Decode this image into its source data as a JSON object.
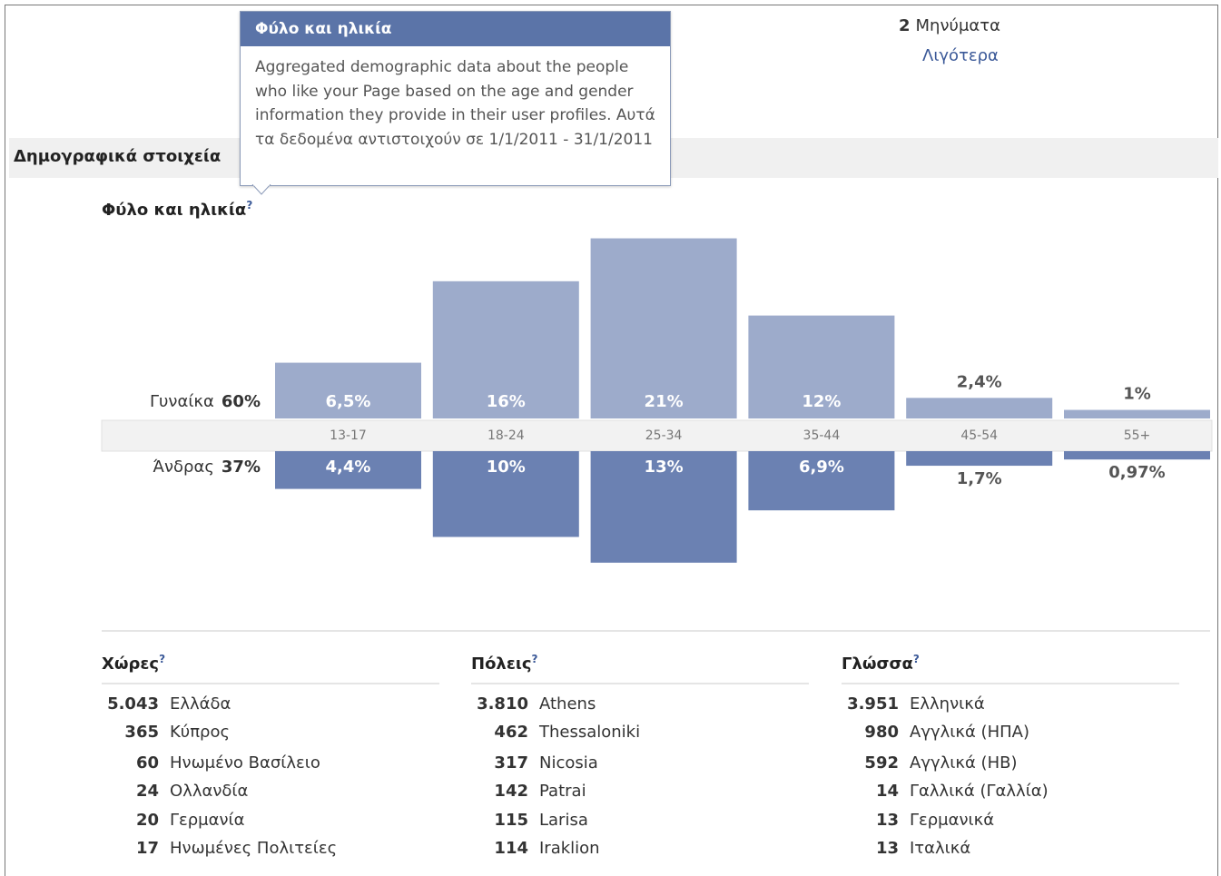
{
  "header": {
    "messages_count": "2",
    "messages_label": "Μηνύματα",
    "less_link": "Λιγότερα"
  },
  "section_title": "Δημογραφικά στοιχεία",
  "tooltip": {
    "title": "Φύλο και ηλικία",
    "text": "Aggregated demographic data about the people who like your Page based on the age and gender information they provide in their user profiles. Αυτά τα δεδομένα αντιστοιχούν σε 1/1/2011 - 31/1/2011"
  },
  "chart_data": {
    "type": "butterfly_bar",
    "title": "Φύλο και ηλικία",
    "help": "?",
    "categories": [
      "13-17",
      "18-24",
      "25-34",
      "35-44",
      "45-54",
      "55+"
    ],
    "series": [
      {
        "name": "Γυναίκα",
        "share_label": "60%",
        "color": "#9dabcb",
        "values": [
          6.5,
          16,
          21,
          12,
          2.4,
          1
        ],
        "value_labels": [
          "6,5%",
          "16%",
          "21%",
          "12%",
          "2,4%",
          "1%"
        ]
      },
      {
        "name": "Άνδρας",
        "share_label": "37%",
        "color": "#6b81b2",
        "values": [
          4.4,
          10,
          13,
          6.9,
          1.7,
          0.97
        ],
        "value_labels": [
          "4,4%",
          "10%",
          "13%",
          "6,9%",
          "1,7%",
          "0,97%"
        ]
      }
    ]
  },
  "lists": [
    {
      "title": "Χώρες",
      "help": "?",
      "rows": [
        [
          "5.043",
          "Ελλάδα"
        ],
        [
          "365",
          "Κύπρος"
        ],
        [
          "60",
          "Ηνωμένο Βασίλειο"
        ],
        [
          "24",
          "Ολλανδία"
        ],
        [
          "20",
          "Γερμανία"
        ],
        [
          "17",
          "Ηνωμένες Πολιτείες"
        ]
      ]
    },
    {
      "title": "Πόλεις",
      "help": "?",
      "rows": [
        [
          "3.810",
          "Athens"
        ],
        [
          "462",
          "Thessaloniki"
        ],
        [
          "317",
          "Nicosia"
        ],
        [
          "142",
          "Patrai"
        ],
        [
          "115",
          "Larisa"
        ],
        [
          "114",
          "Iraklion"
        ]
      ]
    },
    {
      "title": "Γλώσσα",
      "help": "?",
      "rows": [
        [
          "3.951",
          "Ελληνικά"
        ],
        [
          "980",
          "Αγγλικά (ΗΠΑ)"
        ],
        [
          "592",
          "Αγγλικά (ΗΒ)"
        ],
        [
          "14",
          "Γαλλικά (Γαλλία)"
        ],
        [
          "13",
          "Γερμανικά"
        ],
        [
          "13",
          "Ιταλικά"
        ]
      ]
    }
  ]
}
